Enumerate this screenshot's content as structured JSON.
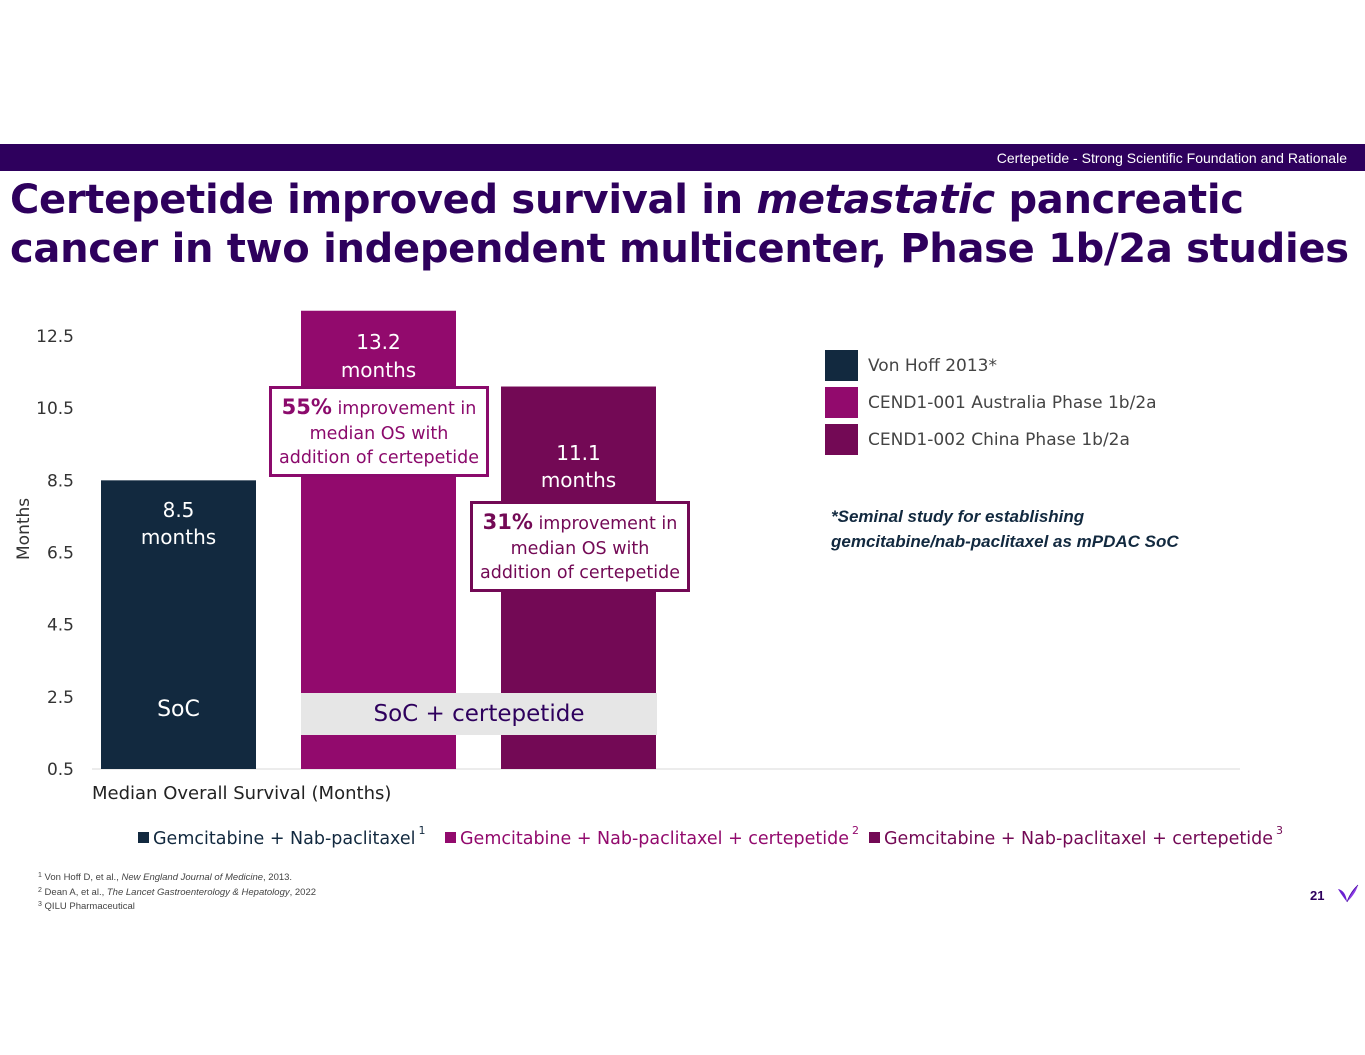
{
  "header": {
    "section_label": "Certepetide - Strong Scientific Foundation and Rationale"
  },
  "title": {
    "part1": "Certepetide improved survival in ",
    "emphasis": "metastatic",
    "part2": " pancreatic cancer in two independent multicenter, Phase 1b/2a studies"
  },
  "chart_data": {
    "type": "bar",
    "categories": [
      "Von Hoff 2013*",
      "CEND1-001 Australia Phase 1b/2a",
      "CEND1-002 China Phase 1b/2a"
    ],
    "values": [
      8.5,
      13.2,
      11.1
    ],
    "value_labels": [
      [
        "8.5",
        "months"
      ],
      [
        "13.2",
        "months"
      ],
      [
        "11.1",
        "months"
      ]
    ],
    "bar_colors": [
      "#12293f",
      "#920a6d",
      "#730955"
    ],
    "ylabel": "Months",
    "xlabel": "Median Overall Survival (Months)",
    "ylim": [
      0.5,
      13.2
    ],
    "yticks": [
      "0.5",
      "2.5",
      "4.5",
      "6.5",
      "8.5",
      "10.5",
      "12.5"
    ],
    "ytick_values": [
      0.5,
      2.5,
      4.5,
      6.5,
      8.5,
      10.5,
      12.5
    ],
    "grid": false,
    "legend_placement": "right",
    "soc_label": "SoC",
    "combo_label": "SoC + certepetide",
    "annotations": [
      {
        "bold": "55%",
        "line1_rest": " improvement in",
        "line2": "median OS with",
        "line3": "addition of certepetide"
      },
      {
        "bold": "31%",
        "line1_rest": " improvement in",
        "line2": "median OS with",
        "line3": "addition of certepetide"
      }
    ]
  },
  "legend": {
    "items": [
      {
        "label": "Von Hoff 2013*",
        "color": "#12293f"
      },
      {
        "label": "CEND1-001 Australia Phase 1b/2a",
        "color": "#920a6d"
      },
      {
        "label": "CEND1-002 China Phase 1b/2a",
        "color": "#730955"
      }
    ]
  },
  "note": {
    "line1": "*Seminal study for establishing",
    "line2": "gemcitabine/nab-paclitaxel as mPDAC SoC"
  },
  "bottom_legend": {
    "items": [
      {
        "label": "Gemcitabine + Nab-paclitaxel",
        "sup": "1",
        "color": "#12293f"
      },
      {
        "label": "Gemcitabine + Nab-paclitaxel + certepetide",
        "sup": "2",
        "color": "#920a6d"
      },
      {
        "label": "Gemcitabine + Nab-paclitaxel + certepetide",
        "sup": "3",
        "color": "#730955"
      }
    ]
  },
  "references": {
    "r1_num": "1",
    "r1_pre": "Von Hoff D, et al., ",
    "r1_journal": "New England Journal of Medicine",
    "r1_post": ", 2013.",
    "r2_num": "2",
    "r2_pre": "Dean A, et al., ",
    "r2_journal": "The Lancet Gastroenterology & Hepatology",
    "r2_post": ", 2022",
    "r3_num": "3",
    "r3_text": "QILU Pharmaceutical"
  },
  "footer": {
    "page_number": "21",
    "logo_icon": "leaf-logo-icon",
    "logo_color": "#6a1fd1"
  }
}
